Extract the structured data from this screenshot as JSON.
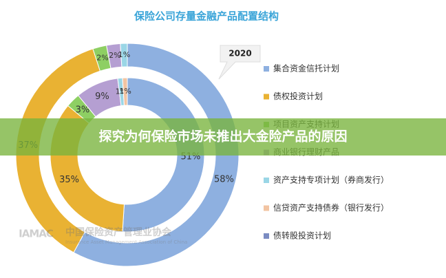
{
  "chart_data": {
    "type": "donut",
    "title": "保险公司存量金融产品配置结构",
    "callout": "2020",
    "categories": [
      "集合资金信托计划",
      "债权投资计划",
      "项目资产支持计划",
      "商业银行理财产品",
      "资产支持专项计划（券商发行）",
      "信贷资产支持债券（银行发行）",
      "债转股投资计划"
    ],
    "colors": [
      "#8eb0e0",
      "#e9b233",
      "#8ecf63",
      "#b59fd2",
      "#9ad6e6",
      "#f2c4a2",
      "#7b8cc2"
    ],
    "series": [
      {
        "values": [
          58,
          37,
          2,
          2,
          1,
          null,
          null
        ],
        "value_labels": [
          "58%",
          "37%",
          "2%",
          "2%",
          "1%",
          null,
          null
        ]
      },
      {
        "values": [
          51,
          35,
          3,
          9,
          1,
          1,
          null
        ],
        "value_labels": [
          "51%",
          "35%",
          "3%",
          "9%",
          "1%",
          "1%",
          null
        ]
      }
    ]
  },
  "banner": {
    "text": "探究为何保险市场未推出大金险产品的原因"
  },
  "watermark": {
    "logo": "IAMAC",
    "name": "中国保险资产管理业协会",
    "english": "Insurance Asset Management Association of China"
  }
}
